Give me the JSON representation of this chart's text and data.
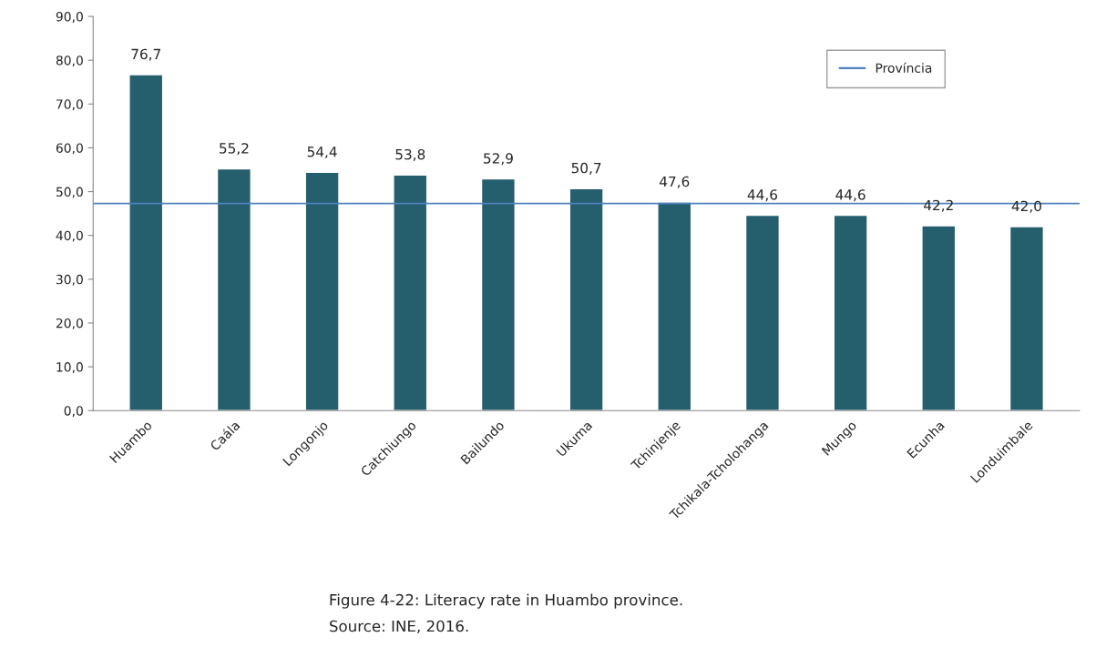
{
  "chart_data": {
    "type": "bar",
    "categories": [
      "Huambo",
      "Caála",
      "Longonjo",
      "Catchiungo",
      "Bailundo",
      "Ukuma",
      "Tchinjenje",
      "Tchikala-Tcholohanga",
      "Mungo",
      "Ecunha",
      "Londuimbale"
    ],
    "values": [
      76.7,
      55.2,
      54.4,
      53.8,
      52.9,
      50.7,
      47.6,
      44.6,
      44.6,
      42.2,
      42.0
    ],
    "value_labels": [
      "76,7",
      "55,2",
      "54,4",
      "53,8",
      "52,9",
      "50,7",
      "47,6",
      "44,6",
      "44,6",
      "42,2",
      "42,0"
    ],
    "color": "#255e6d",
    "ylim": [
      0,
      90
    ],
    "yticks": [
      {
        "value": 0,
        "label": "0,0"
      },
      {
        "value": 10,
        "label": "10,0"
      },
      {
        "value": 20,
        "label": "20,0"
      },
      {
        "value": 30,
        "label": "30,0"
      },
      {
        "value": 40,
        "label": "40,0"
      },
      {
        "value": 50,
        "label": "50,0"
      },
      {
        "value": 60,
        "label": "60,0"
      },
      {
        "value": 70,
        "label": "70,0"
      },
      {
        "value": 80,
        "label": "80,0"
      },
      {
        "value": 90,
        "label": "90,0"
      }
    ],
    "ref_lines": [
      {
        "axis": "y",
        "value": 47.3,
        "label": "Província",
        "color": "#4f81bd",
        "line_style": "solid"
      }
    ],
    "legend": "top right",
    "grid": false,
    "annotations": [
      "Figure 4-22: Literacy rate in Huambo province.",
      "Source: INE, 2016."
    ]
  }
}
